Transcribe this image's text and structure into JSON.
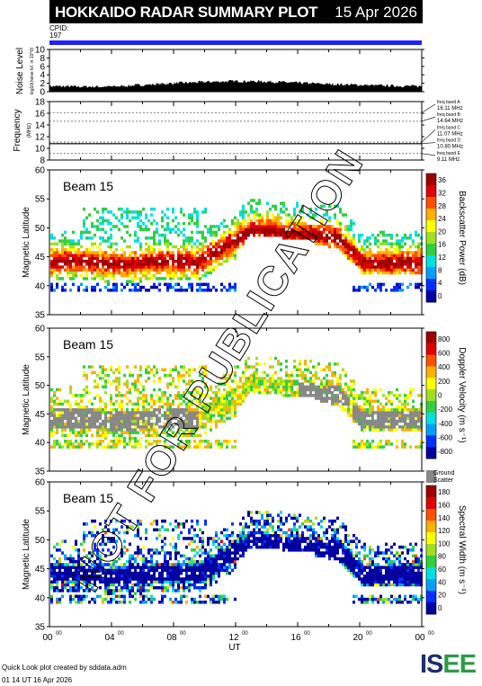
{
  "header": {
    "title": "HOKKAIDO RADAR SUMMARY PLOT",
    "date": "15 Apr 2026"
  },
  "cpid": {
    "label": "CPID:",
    "value": "197"
  },
  "colors": {
    "cpid_bar": "#2020ff",
    "ground_scatter": "#888888"
  },
  "footer": {
    "credit": "Quick Look plot created by sddata.adm",
    "timestamp": "01 14 UT 16 Apr 2026"
  },
  "logo": {
    "text_a": "IS",
    "text_b": "EE"
  },
  "watermark": "NOT FOR PUBLICATION",
  "chart_data": [
    {
      "id": "noise",
      "type": "area",
      "ylabel": "Noise Level",
      "ylabel_sub": "log10(noise lvl. in 10^0)",
      "ylim": [
        0,
        10
      ],
      "yticks": [
        "10",
        "8",
        "6",
        "4",
        "2",
        "0"
      ],
      "x_hours": [
        0,
        2,
        4,
        6,
        8,
        10,
        12,
        14,
        16,
        18,
        20,
        22,
        24
      ],
      "values": [
        1.3,
        1.2,
        1.2,
        1.6,
        2.0,
        2.3,
        2.5,
        2.4,
        2.1,
        1.8,
        1.6,
        1.4,
        1.3
      ]
    },
    {
      "id": "freq",
      "type": "line",
      "ylabel": "Frequency",
      "ylabel_sub": "(MHz)",
      "ylim": [
        8,
        18
      ],
      "yticks": [
        "18",
        "16",
        "14",
        "12",
        "10",
        "8"
      ],
      "bands": [
        {
          "label": "freq band A",
          "value": "16.11 MHz",
          "mhz": 16.11
        },
        {
          "label": "freq band B",
          "value": "14.64 MHz",
          "mhz": 14.64
        },
        {
          "label": "freq band C",
          "value": "11.07 MHz",
          "mhz": 11.07
        },
        {
          "label": "freq band D",
          "value": "10.80 MHz",
          "mhz": 10.8
        },
        {
          "label": "freq band E",
          "value": "9.11 MHz",
          "mhz": 9.11
        }
      ]
    },
    {
      "id": "power",
      "type": "heatmap",
      "panel_label": "Beam 15",
      "ylabel": "Magnetic Latitude",
      "ylim": [
        35,
        60
      ],
      "yticks": [
        "60",
        "55",
        "50",
        "45",
        "40",
        "35"
      ],
      "cbar_title": "Backscatter Power (dB)",
      "cbar_ticks": [
        "36",
        "32",
        "28",
        "24",
        "20",
        "16",
        "12",
        "8",
        "4",
        "0"
      ]
    },
    {
      "id": "velocity",
      "type": "heatmap",
      "panel_label": "Beam 15",
      "ylabel": "Magnetic Latitude",
      "ylim": [
        35,
        60
      ],
      "yticks": [
        "60",
        "55",
        "50",
        "45",
        "40",
        "35"
      ],
      "cbar_title": "Doppler Velocity (m s⁻¹)",
      "cbar_ticks": [
        "800",
        "600",
        "400",
        "200",
        "0",
        "-200",
        "-400",
        "-600",
        "-800"
      ],
      "gs_label": "Ground Scatter"
    },
    {
      "id": "width",
      "type": "heatmap",
      "panel_label": "Beam 15",
      "ylabel": "Magnetic Latitude",
      "ylim": [
        35,
        60
      ],
      "yticks": [
        "60",
        "55",
        "50",
        "45",
        "40",
        "35"
      ],
      "cbar_title": "Spectral Width (m s⁻¹)",
      "cbar_ticks": [
        "180",
        "160",
        "140",
        "120",
        "100",
        "80",
        "60",
        "40",
        "20",
        "0"
      ]
    }
  ],
  "xaxis": {
    "ticks": [
      "00",
      "04",
      "08",
      "12",
      "16",
      "20",
      "00"
    ],
    "tick_sup": "00",
    "label": "UT"
  }
}
